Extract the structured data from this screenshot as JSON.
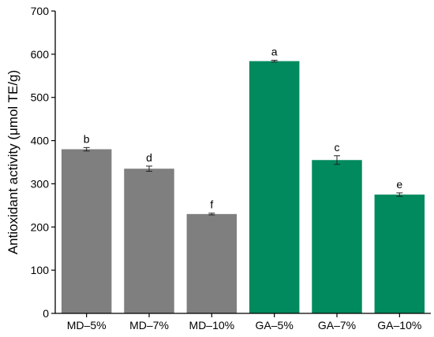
{
  "chart_data": {
    "type": "bar",
    "xlabel": "",
    "ylabel": "Antioxidant activity (μmol TE/g)",
    "ylim": [
      0,
      700
    ],
    "yticks": [
      0,
      100,
      200,
      300,
      400,
      500,
      600,
      700
    ],
    "grid": false,
    "categories": [
      "MD–5%",
      "MD–7%",
      "MD–10%",
      "GA–5%",
      "GA–7%",
      "GA–10%"
    ],
    "values": [
      380,
      335,
      230,
      584,
      355,
      275
    ],
    "errors": [
      4,
      6,
      2,
      2,
      10,
      4
    ],
    "significance_labels": [
      "b",
      "d",
      "f",
      "a",
      "c",
      "e"
    ],
    "colors": [
      "#7f7f7f",
      "#7f7f7f",
      "#7f7f7f",
      "#008a5e",
      "#008a5e",
      "#008a5e"
    ]
  }
}
